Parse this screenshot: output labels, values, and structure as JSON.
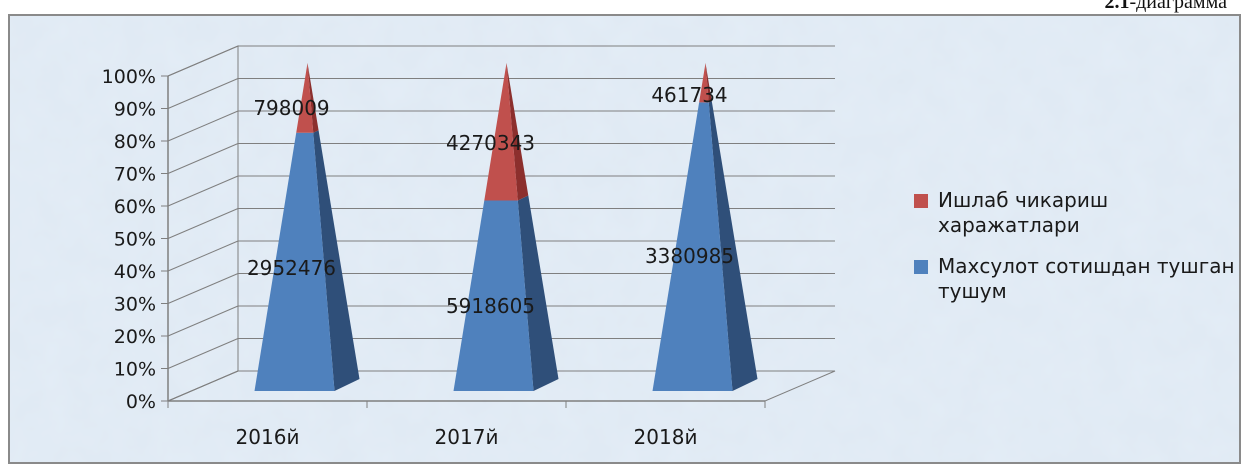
{
  "caption": {
    "number": "2.1",
    "label": "-диаграмма"
  },
  "colors": {
    "bottom": "#4f81bd",
    "bottom_side": "#2f4f79",
    "top": "#c0504d",
    "top_side": "#8c2f2d",
    "bg": "#dfe9f3"
  },
  "chart_data": {
    "type": "bar",
    "stacking": "percent",
    "shape": "3d-pyramid",
    "categories": [
      "2016й",
      "2017й",
      "2018й"
    ],
    "ylim": [
      0,
      100
    ],
    "yticks": [
      "0%",
      "10%",
      "20%",
      "30%",
      "40%",
      "50%",
      "60%",
      "70%",
      "80%",
      "90%",
      "100%"
    ],
    "grid": true,
    "legend_position": "right",
    "series": [
      {
        "name": "Махсулот сотишдан тушган тушум",
        "values": [
          2952476,
          5918605,
          3380985
        ],
        "labels": [
          "2952476",
          "5918605",
          "3380985"
        ],
        "color": "#4f81bd"
      },
      {
        "name": "Ишлаб чикариш харажатлари",
        "values": [
          798009,
          4270343,
          461734
        ],
        "labels": [
          "798009",
          "4270343",
          "461734"
        ],
        "color": "#c0504d"
      }
    ]
  }
}
